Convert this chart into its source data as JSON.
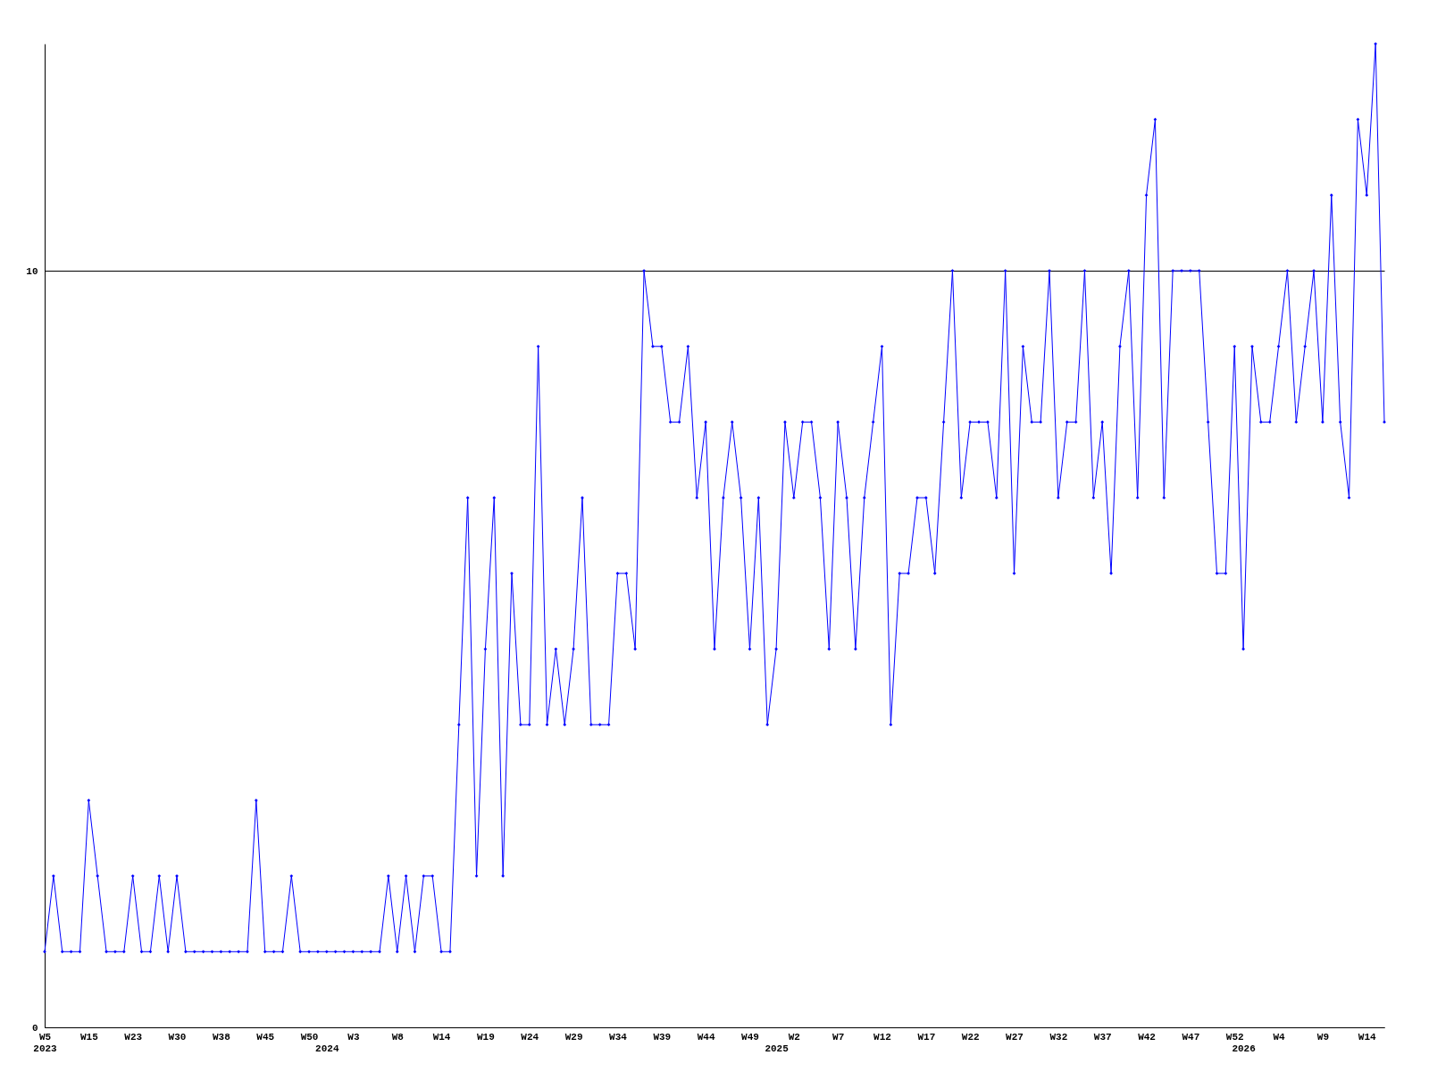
{
  "chart_data": {
    "type": "line",
    "categories": [
      "W5\n2023",
      null,
      null,
      null,
      null,
      "W15",
      null,
      null,
      null,
      null,
      "W23",
      null,
      null,
      null,
      null,
      "W30",
      null,
      null,
      null,
      null,
      "W38",
      null,
      null,
      null,
      null,
      "W45",
      null,
      null,
      null,
      null,
      "W50",
      null,
      "\n2024",
      null,
      null,
      "W3",
      null,
      null,
      null,
      null,
      "W8",
      null,
      null,
      null,
      null,
      "W14",
      null,
      null,
      null,
      null,
      "W19",
      null,
      null,
      null,
      null,
      "W24",
      null,
      null,
      null,
      null,
      "W29",
      null,
      null,
      null,
      null,
      "W34",
      null,
      null,
      null,
      null,
      "W39",
      null,
      null,
      null,
      null,
      "W44",
      null,
      null,
      null,
      null,
      "W49",
      null,
      null,
      "\n2025",
      null,
      "W2",
      null,
      null,
      null,
      null,
      "W7",
      null,
      null,
      null,
      null,
      "W12",
      null,
      null,
      null,
      null,
      "W17",
      null,
      null,
      null,
      null,
      "W22",
      null,
      null,
      null,
      null,
      "W27",
      null,
      null,
      null,
      null,
      "W32",
      null,
      null,
      null,
      null,
      "W37",
      null,
      null,
      null,
      null,
      "W42",
      null,
      null,
      null,
      null,
      "W47",
      null,
      null,
      null,
      null,
      "W52",
      "\n2026",
      null,
      null,
      null,
      "W4",
      null,
      null,
      null,
      null,
      "W9",
      null,
      null,
      null,
      null,
      "W14",
      null,
      null
    ],
    "series": [
      {
        "color": "#0000ff",
        "values": [
          1,
          2,
          1,
          1,
          1,
          3,
          2,
          1,
          1,
          1,
          2,
          1,
          1,
          2,
          1,
          2,
          1,
          1,
          1,
          1,
          1,
          1,
          1,
          1,
          3,
          1,
          1,
          1,
          2,
          1,
          1,
          1,
          1,
          1,
          1,
          1,
          1,
          1,
          1,
          2,
          1,
          2,
          1,
          2,
          2,
          1,
          1,
          4,
          7,
          2,
          5,
          7,
          2,
          6,
          4,
          4,
          9,
          4,
          5,
          4,
          5,
          7,
          4,
          4,
          4,
          6,
          6,
          5,
          10,
          9,
          9,
          8,
          8,
          9,
          7,
          8,
          5,
          7,
          8,
          7,
          5,
          7,
          4,
          5,
          8,
          7,
          8,
          8,
          7,
          5,
          8,
          7,
          5,
          7,
          8,
          9,
          4,
          6,
          6,
          7,
          7,
          6,
          8,
          10,
          7,
          8,
          8,
          8,
          7,
          10,
          6,
          9,
          8,
          8,
          10,
          7,
          8,
          8,
          10,
          7,
          8,
          6,
          9,
          10,
          7,
          11,
          12,
          7,
          10,
          10,
          10,
          10,
          8,
          6,
          6,
          9,
          5,
          9,
          8,
          8,
          9,
          10,
          8,
          9,
          10,
          8,
          11,
          8,
          7,
          12,
          11,
          13,
          8
        ]
      }
    ],
    "ylim": [
      0,
      13
    ],
    "yticks": [
      0,
      10
    ],
    "grid": "y",
    "marker": "diamond",
    "line_style": "solid"
  }
}
